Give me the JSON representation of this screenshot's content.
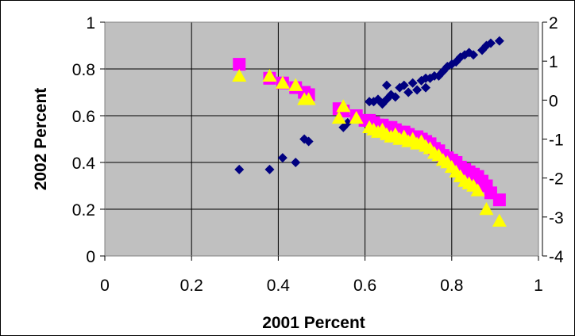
{
  "chart_data": {
    "type": "scatter",
    "title": "",
    "xlabel": "2001 Percent",
    "ylabel": "2002 Percent",
    "xlim": [
      0,
      1
    ],
    "ylim": [
      0,
      1
    ],
    "y2lim": [
      -4,
      2
    ],
    "x_ticks": [
      "0",
      "0.2",
      "0.4",
      "0.6",
      "0.8",
      "1"
    ],
    "y_ticks": [
      "0",
      "0.2",
      "0.4",
      "0.6",
      "0.8",
      "1"
    ],
    "y2_ticks": [
      "-4",
      "-3",
      "-2",
      "-1",
      "0",
      "1",
      "2"
    ],
    "grid": true,
    "plot_background": "#c0c0c0",
    "series": [
      {
        "marker": "diamond",
        "color": "#000080",
        "axis": "left",
        "points": [
          [
            0.31,
            0.37
          ],
          [
            0.38,
            0.37
          ],
          [
            0.41,
            0.42
          ],
          [
            0.44,
            0.4
          ],
          [
            0.46,
            0.5
          ],
          [
            0.47,
            0.49
          ],
          [
            0.55,
            0.55
          ],
          [
            0.56,
            0.57
          ],
          [
            0.61,
            0.66
          ],
          [
            0.62,
            0.66
          ],
          [
            0.63,
            0.67
          ],
          [
            0.64,
            0.65
          ],
          [
            0.65,
            0.67
          ],
          [
            0.65,
            0.73
          ],
          [
            0.66,
            0.69
          ],
          [
            0.67,
            0.68
          ],
          [
            0.68,
            0.72
          ],
          [
            0.69,
            0.73
          ],
          [
            0.7,
            0.7
          ],
          [
            0.71,
            0.74
          ],
          [
            0.72,
            0.71
          ],
          [
            0.73,
            0.75
          ],
          [
            0.74,
            0.76
          ],
          [
            0.74,
            0.72
          ],
          [
            0.75,
            0.76
          ],
          [
            0.76,
            0.77
          ],
          [
            0.77,
            0.77
          ],
          [
            0.78,
            0.79
          ],
          [
            0.79,
            0.81
          ],
          [
            0.8,
            0.82
          ],
          [
            0.81,
            0.83
          ],
          [
            0.82,
            0.85
          ],
          [
            0.83,
            0.86
          ],
          [
            0.84,
            0.87
          ],
          [
            0.85,
            0.86
          ],
          [
            0.87,
            0.88
          ],
          [
            0.88,
            0.9
          ],
          [
            0.89,
            0.91
          ],
          [
            0.91,
            0.92
          ]
        ]
      },
      {
        "marker": "square",
        "color": "#ff00ff",
        "axis": "left",
        "points": [
          [
            0.31,
            0.82
          ],
          [
            0.38,
            0.76
          ],
          [
            0.41,
            0.74
          ],
          [
            0.44,
            0.72
          ],
          [
            0.46,
            0.7
          ],
          [
            0.47,
            0.69
          ],
          [
            0.54,
            0.63
          ],
          [
            0.55,
            0.62
          ],
          [
            0.58,
            0.6
          ],
          [
            0.6,
            0.58
          ],
          [
            0.61,
            0.58
          ],
          [
            0.62,
            0.57
          ],
          [
            0.63,
            0.56
          ],
          [
            0.64,
            0.56
          ],
          [
            0.65,
            0.55
          ],
          [
            0.66,
            0.55
          ],
          [
            0.67,
            0.54
          ],
          [
            0.68,
            0.53
          ],
          [
            0.69,
            0.53
          ],
          [
            0.7,
            0.52
          ],
          [
            0.71,
            0.51
          ],
          [
            0.72,
            0.51
          ],
          [
            0.73,
            0.5
          ],
          [
            0.74,
            0.49
          ],
          [
            0.75,
            0.48
          ],
          [
            0.76,
            0.46
          ],
          [
            0.77,
            0.45
          ],
          [
            0.78,
            0.43
          ],
          [
            0.79,
            0.42
          ],
          [
            0.8,
            0.41
          ],
          [
            0.81,
            0.4
          ],
          [
            0.82,
            0.38
          ],
          [
            0.83,
            0.37
          ],
          [
            0.84,
            0.36
          ],
          [
            0.85,
            0.35
          ],
          [
            0.86,
            0.34
          ],
          [
            0.87,
            0.32
          ],
          [
            0.88,
            0.3
          ],
          [
            0.89,
            0.27
          ],
          [
            0.91,
            0.24
          ]
        ]
      },
      {
        "marker": "triangle",
        "color": "#ffff00",
        "axis": "left",
        "points": [
          [
            0.31,
            0.77
          ],
          [
            0.38,
            0.77
          ],
          [
            0.41,
            0.74
          ],
          [
            0.44,
            0.73
          ],
          [
            0.46,
            0.67
          ],
          [
            0.47,
            0.67
          ],
          [
            0.54,
            0.59
          ],
          [
            0.55,
            0.64
          ],
          [
            0.58,
            0.59
          ],
          [
            0.61,
            0.55
          ],
          [
            0.62,
            0.54
          ],
          [
            0.63,
            0.53
          ],
          [
            0.64,
            0.54
          ],
          [
            0.65,
            0.52
          ],
          [
            0.66,
            0.51
          ],
          [
            0.67,
            0.52
          ],
          [
            0.68,
            0.5
          ],
          [
            0.69,
            0.51
          ],
          [
            0.7,
            0.49
          ],
          [
            0.71,
            0.5
          ],
          [
            0.72,
            0.48
          ],
          [
            0.73,
            0.49
          ],
          [
            0.74,
            0.47
          ],
          [
            0.75,
            0.46
          ],
          [
            0.76,
            0.44
          ],
          [
            0.77,
            0.43
          ],
          [
            0.78,
            0.41
          ],
          [
            0.79,
            0.4
          ],
          [
            0.8,
            0.38
          ],
          [
            0.81,
            0.36
          ],
          [
            0.82,
            0.34
          ],
          [
            0.83,
            0.32
          ],
          [
            0.84,
            0.31
          ],
          [
            0.85,
            0.3
          ],
          [
            0.86,
            0.28
          ],
          [
            0.88,
            0.2
          ],
          [
            0.91,
            0.15
          ]
        ]
      }
    ]
  }
}
